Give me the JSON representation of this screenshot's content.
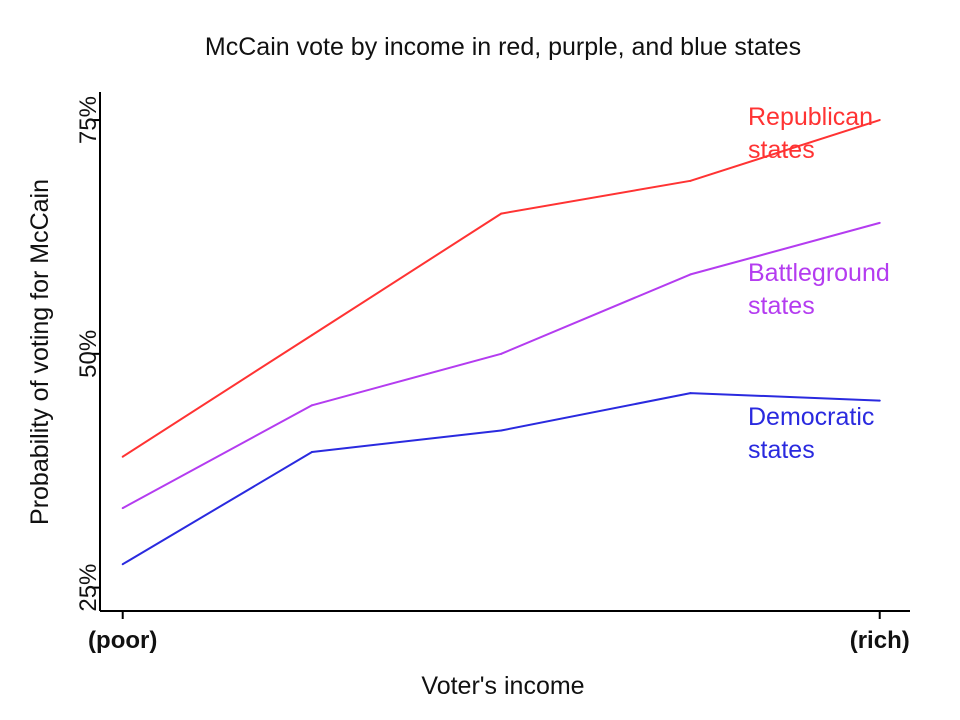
{
  "chart_data": {
    "type": "line",
    "title": "McCain vote by income in red, purple, and blue states",
    "xlabel": "Voter's income",
    "ylabel": "Probability of voting for McCain",
    "x": [
      1,
      2,
      3,
      4,
      5
    ],
    "xticks": [
      {
        "value": 1,
        "label": "(poor)"
      },
      {
        "value": 5,
        "label": "(rich)"
      }
    ],
    "xlim": [
      0.88,
      5.16
    ],
    "yticks": [
      {
        "value": 0.25,
        "label": "25%"
      },
      {
        "value": 0.5,
        "label": "50%"
      },
      {
        "value": 0.75,
        "label": "75%"
      }
    ],
    "ylim": [
      0.225,
      0.78
    ],
    "grid": false,
    "legend": "direct labels at right end of each line",
    "series": [
      {
        "name": "Republican states",
        "label_lines": [
          "Republican",
          "states"
        ],
        "color": "#ff3333",
        "values": [
          0.39,
          0.52,
          0.65,
          0.685,
          0.75
        ]
      },
      {
        "name": "Battleground states",
        "label_lines": [
          "Battleground",
          "states"
        ],
        "color": "#b43cf0",
        "values": [
          0.335,
          0.445,
          0.5,
          0.585,
          0.64
        ]
      },
      {
        "name": "Democratic states",
        "label_lines": [
          "Democratic",
          "states"
        ],
        "color": "#2a2adf",
        "values": [
          0.275,
          0.395,
          0.418,
          0.458,
          0.45
        ]
      }
    ]
  }
}
